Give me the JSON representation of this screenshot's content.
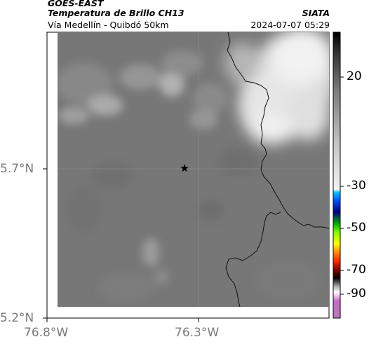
{
  "header": {
    "satellite": "GOES-EAST",
    "product": "Temperatura de Brillo CH13",
    "region": "Vía Medellín - Quibdó 50km",
    "agency": "SIATA",
    "datetime": "2024-07-07 05:29"
  },
  "axes": {
    "lat_labels": [
      "5.7°N",
      "5.2°N"
    ],
    "lon_labels": [
      "76.8°W",
      "76.3°W"
    ]
  },
  "colorbar": {
    "labels": [
      "20",
      "-30",
      "-50",
      "-70",
      "-90"
    ]
  },
  "map": {
    "marker": "star-marker"
  }
}
